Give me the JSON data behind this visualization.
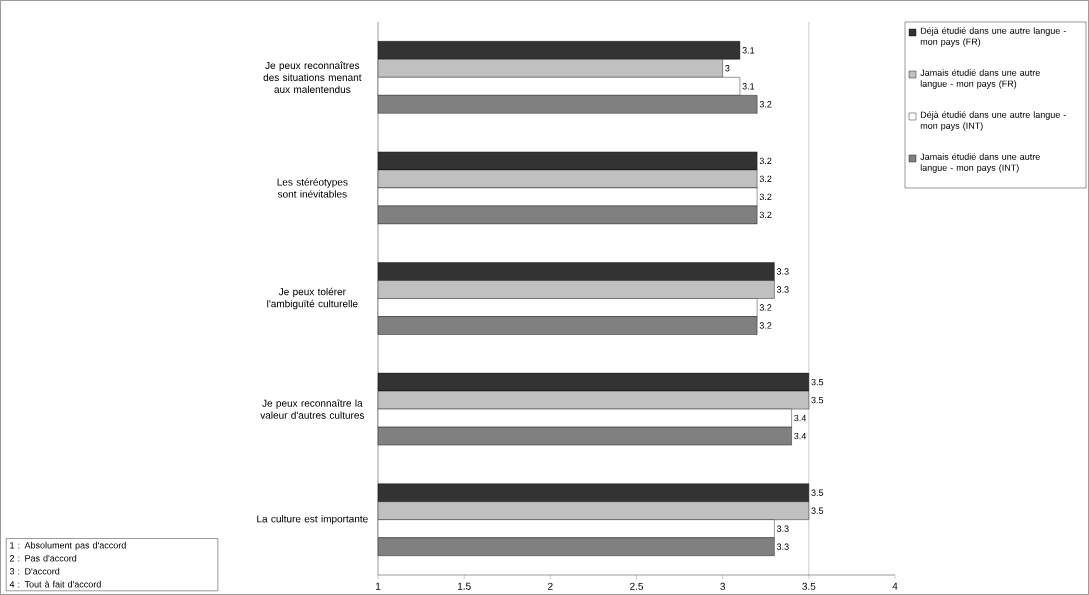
{
  "chart_data": {
    "type": "bar",
    "orientation": "horizontal",
    "categories": [
      "Je peux reconnaîtres des situations menant aux malentendus",
      "Les stéréotypes sont inévitables",
      "Je peux tolérer l'ambiguïté culturelle",
      "Je peux reconnaître la valeur d'autres cultures",
      "La culture est importante"
    ],
    "series": [
      {
        "name": "Déjà étudié dans une autre langue - mon pays (FR)",
        "color": "#333333",
        "values": [
          3.1,
          3.2,
          3.3,
          3.5,
          3.5
        ]
      },
      {
        "name": "Jamais étudié dans une autre langue - mon pays (FR)",
        "color": "#c0c0c0",
        "values": [
          3,
          3.2,
          3.3,
          3.5,
          3.5
        ]
      },
      {
        "name": "Déjà étudié dans une autre langue - mon pays (INT)",
        "color": "#ffffff",
        "values": [
          3.1,
          3.2,
          3.2,
          3.4,
          3.3
        ]
      },
      {
        "name": "Jamais étudié dans une autre langue - mon pays (INT)",
        "color": "#808080",
        "values": [
          3.2,
          3.2,
          3.2,
          3.4,
          3.3
        ]
      }
    ],
    "xlim": [
      1,
      4
    ],
    "xticks": [
      1,
      1.5,
      2,
      2.5,
      3,
      3.5,
      4
    ],
    "data_labels": true,
    "legend": "top right",
    "ref_lines": [
      {
        "axis": "x",
        "value": 3.5,
        "color": "#808080"
      }
    ],
    "annotations": [
      "1 : Absolument pas d'accord",
      "2 : Pas d'accord",
      "3 : D'accord",
      "4 : Tout à fait d'accord"
    ]
  }
}
